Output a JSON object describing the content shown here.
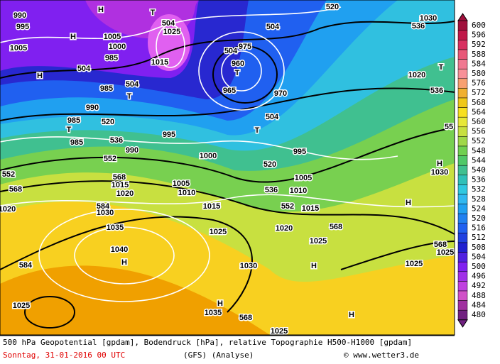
{
  "map": {
    "labels": [
      "990",
      "995",
      "1005",
      "H",
      "T",
      "504",
      "1025",
      "H",
      "1005",
      "1000",
      "985",
      "504",
      "H",
      "504",
      "T",
      "985",
      "1015",
      "504",
      "975",
      "960",
      "T",
      "965",
      "520",
      "504",
      "536",
      "1030",
      "T",
      "1020",
      "536",
      "990",
      "520",
      "985",
      "T",
      "536",
      "985",
      "995",
      "504",
      "970",
      "T",
      "552",
      "990",
      "1000",
      "520",
      "995",
      "552",
      "568",
      "1015",
      "1020",
      "568",
      "1005",
      "1010",
      "536",
      "1005",
      "1010",
      "H",
      "1030",
      "H",
      "584",
      "1030",
      "1015",
      "552",
      "1015",
      "1035",
      "1025",
      "1020",
      "568",
      "1040",
      "H",
      "1025",
      "568",
      "1025",
      "584",
      "1030",
      "H",
      "1025",
      "1025",
      "H",
      "1035",
      "568",
      "H",
      "1025",
      "55",
      "1020"
    ],
    "colorbar": {
      "labels": [
        600,
        596,
        592,
        588,
        584,
        580,
        576,
        572,
        568,
        564,
        560,
        556,
        552,
        548,
        544,
        540,
        536,
        532,
        528,
        524,
        520,
        516,
        512,
        508,
        504,
        500,
        496,
        492,
        488,
        484,
        480
      ],
      "colors": [
        "#a0103c",
        "#c01848",
        "#d83060",
        "#e85878",
        "#f07890",
        "#f89098",
        "#f8a070",
        "#f0b030",
        "#f0c818",
        "#f8e020",
        "#e8e838",
        "#c8e040",
        "#a0d848",
        "#70d050",
        "#50c868",
        "#40c090",
        "#30c0b8",
        "#30c8e0",
        "#30b8f0",
        "#20a0f0",
        "#2080f0",
        "#2060f0",
        "#2040e0",
        "#2020d0",
        "#5020e0",
        "#8020f0",
        "#a030e8",
        "#c040e0",
        "#d050c8",
        "#a030a0",
        "#702080"
      ]
    },
    "caption": {
      "line1": "500 hPa Geopotential [gpdam], Bodendruck [hPa], relative Topographie H500-H1000 [gpdam]",
      "date": "Sonntag, 31-01-2016  00 UTC",
      "model": "(GFS)  (Analyse)",
      "source": "© www.wetter3.de"
    }
  }
}
